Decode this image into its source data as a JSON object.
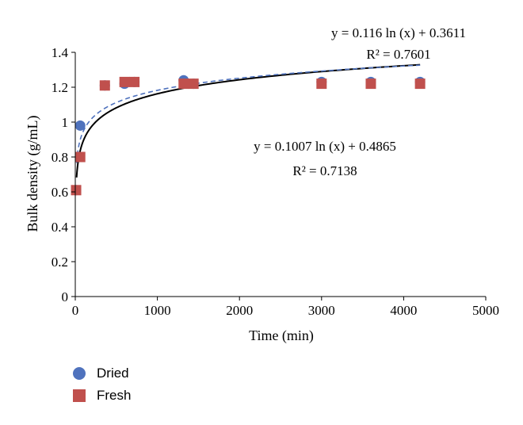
{
  "chart_data": {
    "type": "scatter",
    "xlabel": "Time (min)",
    "ylabel": "Bulk density (g/mL)",
    "xlim": [
      0,
      5000
    ],
    "ylim": [
      0,
      1.4
    ],
    "x_ticks": [
      "0",
      "1000",
      "2000",
      "3000",
      "4000",
      "5000"
    ],
    "y_ticks": [
      "0",
      "0.2",
      "0.4",
      "0.6",
      "0.8",
      "1",
      "1.2",
      "1.4"
    ],
    "grid": false,
    "legend_position": "bottom-left",
    "series": [
      {
        "name": "Dried",
        "marker": "circle",
        "color": "#4f72bd",
        "points": [
          {
            "x": 10,
            "y": 0.61
          },
          {
            "x": 60,
            "y": 0.98
          },
          {
            "x": 360,
            "y": 1.21
          },
          {
            "x": 600,
            "y": 1.22
          },
          {
            "x": 720,
            "y": 1.23
          },
          {
            "x": 1320,
            "y": 1.24
          },
          {
            "x": 1440,
            "y": 1.22
          },
          {
            "x": 3000,
            "y": 1.23
          },
          {
            "x": 3600,
            "y": 1.23
          },
          {
            "x": 4200,
            "y": 1.23
          }
        ]
      },
      {
        "name": "Fresh",
        "marker": "square",
        "color": "#c0504d",
        "points": [
          {
            "x": 10,
            "y": 0.61
          },
          {
            "x": 60,
            "y": 0.8
          },
          {
            "x": 360,
            "y": 1.21
          },
          {
            "x": 600,
            "y": 1.23
          },
          {
            "x": 720,
            "y": 1.23
          },
          {
            "x": 1320,
            "y": 1.22
          },
          {
            "x": 1440,
            "y": 1.22
          },
          {
            "x": 3000,
            "y": 1.22
          },
          {
            "x": 3600,
            "y": 1.22
          },
          {
            "x": 4200,
            "y": 1.22
          }
        ]
      }
    ],
    "trendlines": [
      {
        "style": "solid",
        "color": "#000000",
        "a": 0.116,
        "b": 0.3611,
        "equation_text": "y = 0.116 ln (x) + 0.3611",
        "r2_text": "R² = 0.7601"
      },
      {
        "style": "dashed",
        "color": "#4f72bd",
        "a": 0.1007,
        "b": 0.4865,
        "equation_text": "y = 0.1007 ln (x) + 0.4865",
        "r2_text": "R² = 0.7138"
      }
    ]
  }
}
